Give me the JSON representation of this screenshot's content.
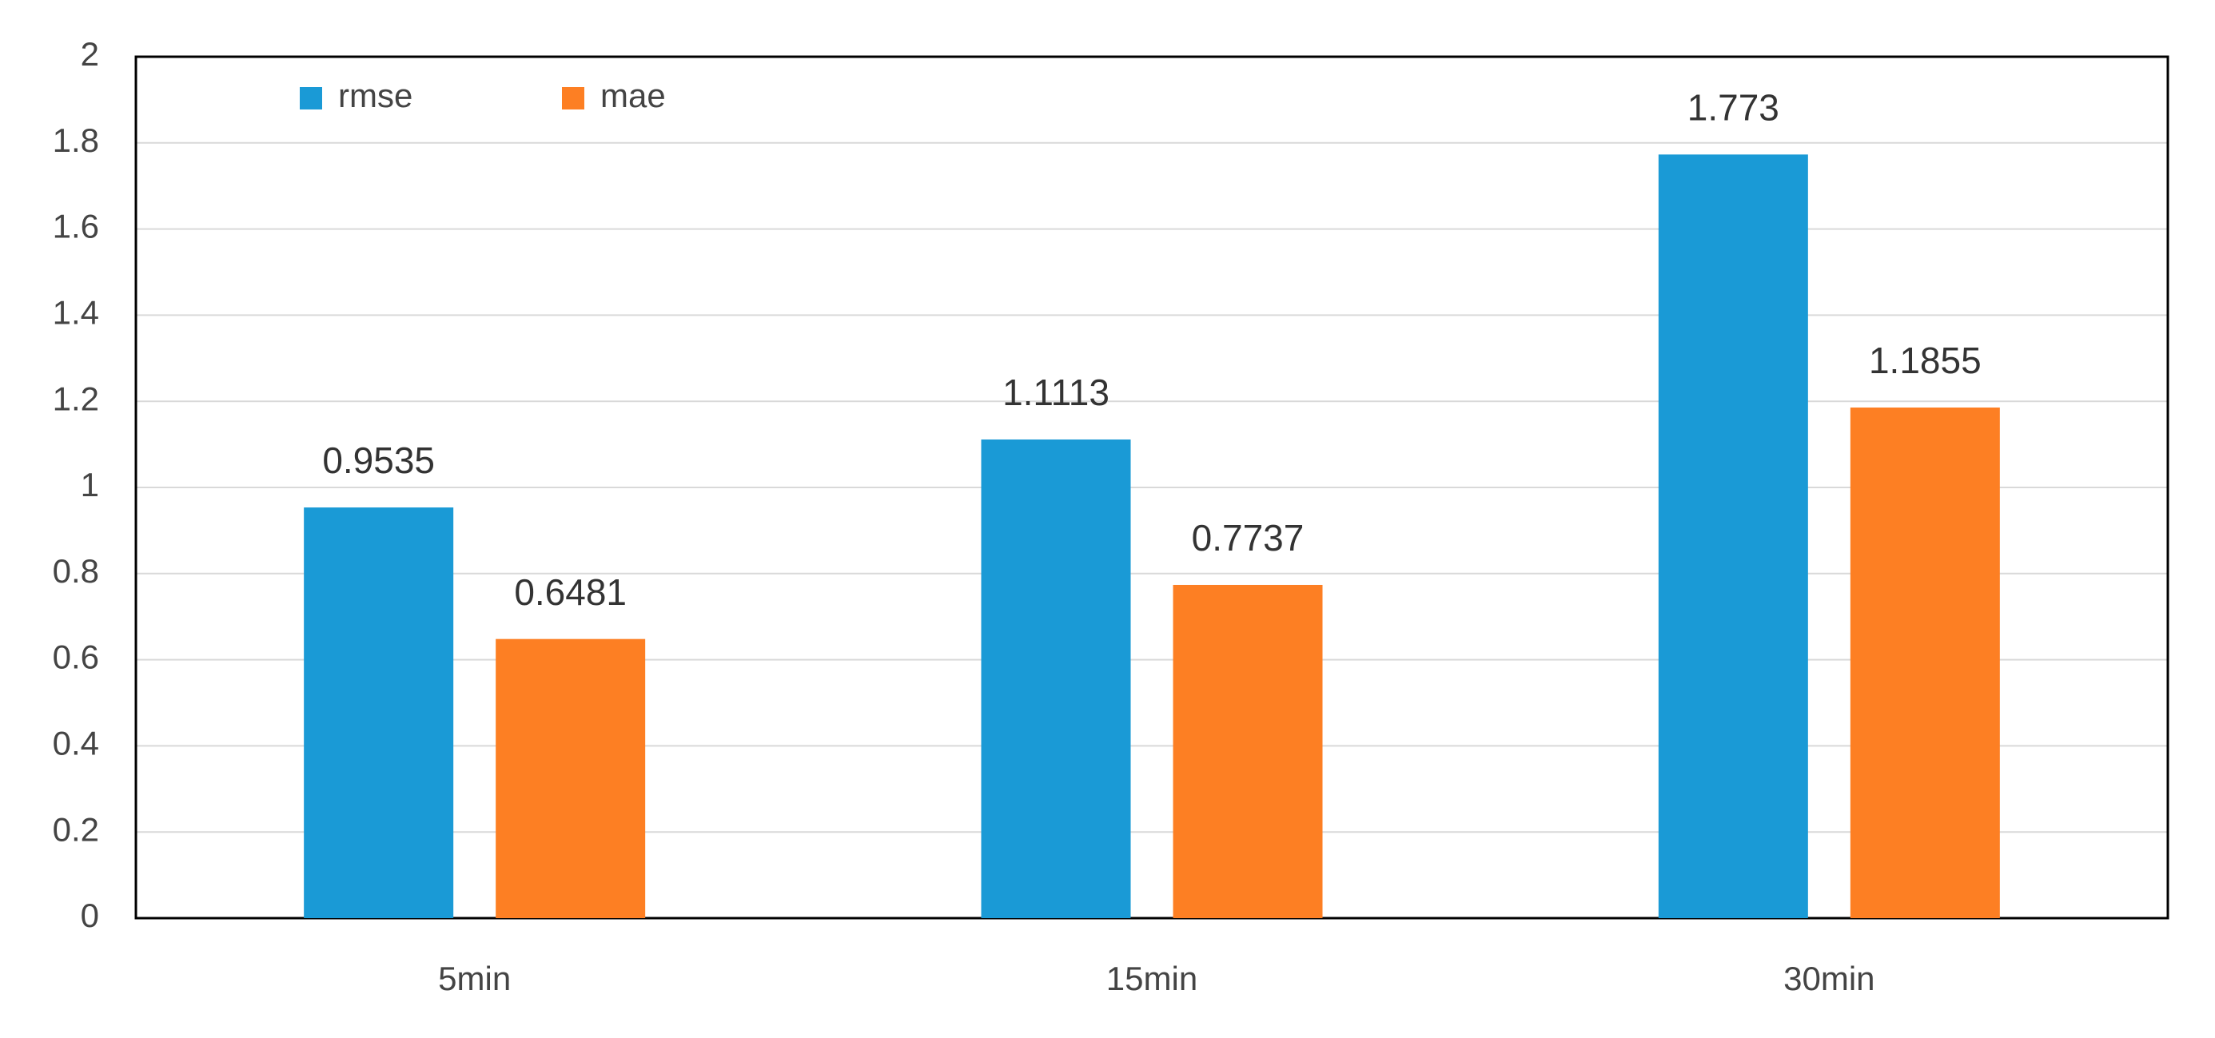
{
  "chart_data": {
    "type": "bar",
    "categories": [
      "5min",
      "15min",
      "30min"
    ],
    "series": [
      {
        "name": "rmse",
        "color": "#1a9ad6",
        "values": [
          0.9535,
          1.1113,
          1.773
        ]
      },
      {
        "name": "mae",
        "color": "#fd7f23",
        "values": [
          0.6481,
          0.7737,
          1.1855
        ]
      }
    ],
    "ylim": [
      0,
      2
    ],
    "yticks": [
      0,
      0.2,
      0.4,
      0.6,
      0.8,
      1,
      1.2,
      1.4,
      1.6,
      1.8,
      2
    ],
    "grid": true,
    "legend": "top-left"
  }
}
